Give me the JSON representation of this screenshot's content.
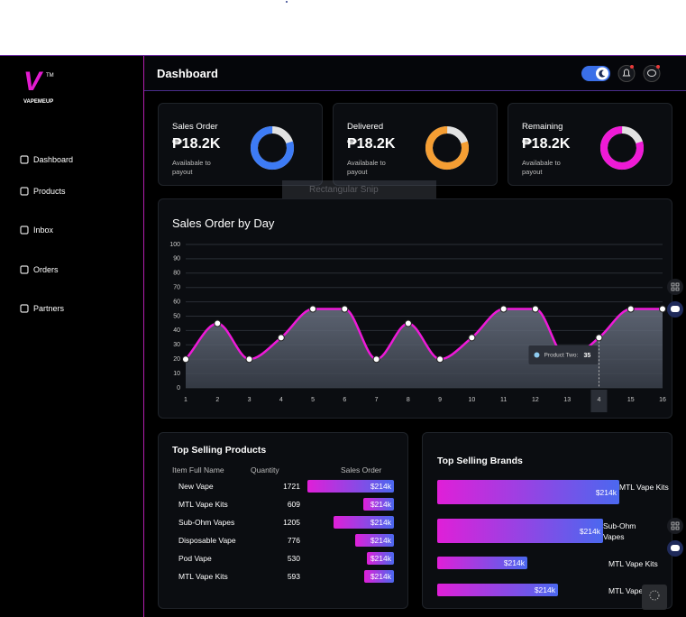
{
  "sidebar": {
    "logo": "V",
    "trademark": "TM",
    "brand": "VAPEMEUP",
    "nav": [
      "Dashboard",
      "Products",
      "Inbox",
      "Orders",
      "Partners"
    ]
  },
  "header": {
    "title": "Dashboard"
  },
  "cards": [
    {
      "title": "Sales Order",
      "value": "₱18.2K",
      "note": "Availabale to payout",
      "color": "#3d7bf5",
      "percent": 80
    },
    {
      "title": "Delivered",
      "value": "₱18.2K",
      "note": "Availabale to payout",
      "color": "#f59e33",
      "percent": 80
    },
    {
      "title": "Remaining",
      "value": "₱18.2K",
      "note": "Availabale to payout",
      "color": "#ef1ad6",
      "percent": 80
    }
  ],
  "snip_label": "Rectangular Snip",
  "chart_data": {
    "type": "line",
    "title": "Sales Order by Day",
    "categories": [
      "1",
      "2",
      "3",
      "4",
      "5",
      "6",
      "7",
      "8",
      "9",
      "10",
      "11",
      "12",
      "13",
      "4",
      "15",
      "16"
    ],
    "series": [
      {
        "color": "#ee1ad8",
        "values": [
          20,
          45,
          20,
          35,
          55,
          55,
          20,
          45,
          20,
          35,
          55,
          55,
          20,
          35,
          55,
          55
        ]
      }
    ],
    "ylim": [
      0,
      100
    ],
    "yticks": [
      0,
      10,
      20,
      30,
      40,
      50,
      60,
      70,
      80,
      90,
      100
    ],
    "grid": true,
    "tooltip": {
      "label": "Product Two:",
      "value": 35
    }
  },
  "top_products": {
    "title": "Top Selling Products",
    "columns": [
      "Item Full Name",
      "Quantity",
      "Sales Order"
    ],
    "rows": [
      {
        "name": "New Vape",
        "quantity": 1721,
        "sales": "$214k"
      },
      {
        "name": "MTL Vape Kits",
        "quantity": 609,
        "sales": "$214k"
      },
      {
        "name": "Sub-Ohm Vapes",
        "quantity": 1205,
        "sales": "$214k"
      },
      {
        "name": "Disposable Vape",
        "quantity": 776,
        "sales": "$214k"
      },
      {
        "name": "Pod Vape",
        "quantity": 530,
        "sales": "$214k"
      },
      {
        "name": "MTL Vape Kits",
        "quantity": 593,
        "sales": "$214k"
      }
    ]
  },
  "top_brands": {
    "title": "Top Selling Brands",
    "rows": [
      {
        "value": "$214k",
        "name": "MTL Vape Kits"
      },
      {
        "value": "$214k",
        "name": "Sub-Ohm Vapes"
      },
      {
        "value": "$214k",
        "name": "MTL Vape Kits"
      },
      {
        "value": "$214k",
        "name": "MTL Vape"
      }
    ]
  }
}
